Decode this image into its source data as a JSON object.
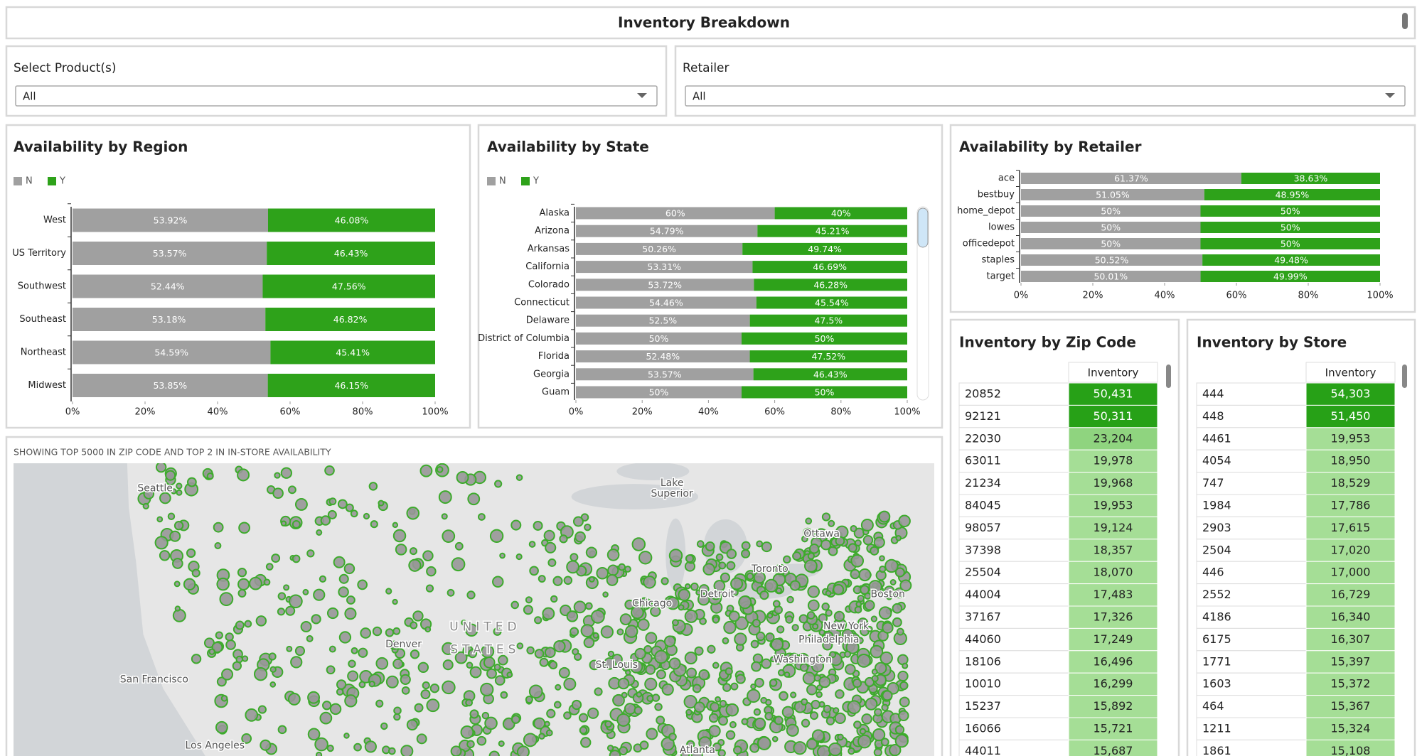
{
  "header": {
    "title": "Inventory Breakdown"
  },
  "filters": [
    {
      "label": "Select Product(s)",
      "value": "All"
    },
    {
      "label": "Retailer",
      "value": "All"
    }
  ],
  "chart_data": [
    {
      "type": "bar",
      "title": "Availability by Region",
      "legend": true,
      "categories": [
        "West",
        "US Territory",
        "Southwest",
        "Southeast",
        "Northeast",
        "Midwest"
      ],
      "series": [
        {
          "name": "N",
          "color": "#a0a0a0",
          "values": [
            53.92,
            53.57,
            52.44,
            53.18,
            54.59,
            53.85
          ],
          "value_labels": [
            "53.92%",
            "53.57%",
            "52.44%",
            "53.18%",
            "54.59%",
            "53.85%"
          ]
        },
        {
          "name": "Y",
          "color": "#2ea21a",
          "values": [
            46.08,
            46.43,
            47.56,
            46.82,
            45.41,
            46.15
          ],
          "value_labels": [
            "46.08%",
            "46.43%",
            "47.56%",
            "46.82%",
            "45.41%",
            "46.15%"
          ]
        }
      ],
      "xlim": [
        0,
        100
      ],
      "xticks": [
        {
          "value": 0,
          "label": "0%"
        },
        {
          "value": 20,
          "label": "20%"
        },
        {
          "value": 40,
          "label": "40%"
        },
        {
          "value": 60,
          "label": "60%"
        },
        {
          "value": 80,
          "label": "80%"
        },
        {
          "value": 100,
          "label": "100%"
        }
      ]
    },
    {
      "type": "bar",
      "title": "Availability by State",
      "legend": true,
      "categories": [
        "Alaska",
        "Arizona",
        "Arkansas",
        "California",
        "Colorado",
        "Connecticut",
        "Delaware",
        "District of Columbia",
        "Florida",
        "Georgia",
        "Guam"
      ],
      "series": [
        {
          "name": "N",
          "color": "#a0a0a0",
          "values": [
            60,
            54.79,
            50.26,
            53.31,
            53.72,
            54.46,
            52.5,
            50,
            52.48,
            53.57,
            50
          ],
          "value_labels": [
            "60%",
            "54.79%",
            "50.26%",
            "53.31%",
            "53.72%",
            "54.46%",
            "52.5%",
            "50%",
            "52.48%",
            "53.57%",
            "50%"
          ]
        },
        {
          "name": "Y",
          "color": "#2ea21a",
          "values": [
            40,
            45.21,
            49.74,
            46.69,
            46.28,
            45.54,
            47.5,
            50,
            47.52,
            46.43,
            50
          ],
          "value_labels": [
            "40%",
            "45.21%",
            "49.74%",
            "46.69%",
            "46.28%",
            "45.54%",
            "47.5%",
            "50%",
            "47.52%",
            "46.43%",
            "50%"
          ]
        }
      ],
      "xlim": [
        0,
        100
      ],
      "xticks": [
        {
          "value": 0,
          "label": "0%"
        },
        {
          "value": 20,
          "label": "20%"
        },
        {
          "value": 40,
          "label": "40%"
        },
        {
          "value": 60,
          "label": "60%"
        },
        {
          "value": 80,
          "label": "80%"
        },
        {
          "value": 100,
          "label": "100%"
        }
      ]
    },
    {
      "type": "bar",
      "title": "Availability by Retailer",
      "legend": false,
      "categories": [
        "ace",
        "bestbuy",
        "home_depot",
        "lowes",
        "officedepot",
        "staples",
        "target"
      ],
      "series": [
        {
          "color": "#a0a0a0",
          "values": [
            61.37,
            51.05,
            50,
            50,
            50,
            50.52,
            50.01
          ],
          "value_labels": [
            "61.37%",
            "51.05%",
            "50%",
            "50%",
            "50%",
            "50.52%",
            "50.01%"
          ]
        },
        {
          "color": "#2ea21a",
          "values": [
            38.63,
            48.95,
            50,
            50,
            50,
            49.48,
            49.99
          ],
          "value_labels": [
            "38.63%",
            "48.95%",
            "50%",
            "50%",
            "50%",
            "49.48%",
            "49.99%"
          ]
        }
      ],
      "xlim": [
        0,
        100
      ],
      "xticks": [
        {
          "value": 0,
          "label": "0%"
        },
        {
          "value": 20,
          "label": "20%"
        },
        {
          "value": 40,
          "label": "40%"
        },
        {
          "value": 60,
          "label": "60%"
        },
        {
          "value": 80,
          "label": "80%"
        },
        {
          "value": 100,
          "label": "100%"
        }
      ]
    }
  ],
  "map": {
    "caption": "SHOWING TOP 5000 IN ZIP CODE AND TOP 2 IN IN-STORE AVAILABILITY",
    "labels": [
      "Seattle",
      "San Francisco",
      "Los Angeles",
      "Denver",
      "UNITED",
      "STATES",
      "Chicago",
      "Detroit",
      "Toronto",
      "Ottawa",
      "Boston",
      "New York",
      "Philadelphia",
      "Washington",
      "St. Louis",
      "Atlanta",
      "Lake",
      "Superior"
    ]
  },
  "tables": [
    {
      "title": "Inventory by Zip Code",
      "header": "Inventory",
      "rows": [
        [
          "20852",
          "50,431"
        ],
        [
          "92121",
          "50,311"
        ],
        [
          "22030",
          "23,204"
        ],
        [
          "63011",
          "19,978"
        ],
        [
          "21234",
          "19,968"
        ],
        [
          "84045",
          "19,953"
        ],
        [
          "98057",
          "19,124"
        ],
        [
          "37398",
          "18,357"
        ],
        [
          "25504",
          "18,070"
        ],
        [
          "44004",
          "17,483"
        ],
        [
          "37167",
          "17,326"
        ],
        [
          "44060",
          "17,249"
        ],
        [
          "18106",
          "16,496"
        ],
        [
          "10010",
          "16,299"
        ],
        [
          "15237",
          "15,892"
        ],
        [
          "16066",
          "15,721"
        ],
        [
          "44011",
          "15,687"
        ]
      ]
    },
    {
      "title": "Inventory by Store",
      "header": "Inventory",
      "rows": [
        [
          "444",
          "54,303"
        ],
        [
          "448",
          "51,450"
        ],
        [
          "4461",
          "19,953"
        ],
        [
          "4054",
          "18,950"
        ],
        [
          "747",
          "18,529"
        ],
        [
          "1984",
          "17,786"
        ],
        [
          "2903",
          "17,615"
        ],
        [
          "2504",
          "17,020"
        ],
        [
          "446",
          "17,000"
        ],
        [
          "2552",
          "16,729"
        ],
        [
          "4186",
          "16,340"
        ],
        [
          "6175",
          "16,307"
        ],
        [
          "1771",
          "15,397"
        ],
        [
          "1603",
          "15,372"
        ],
        [
          "464",
          "15,367"
        ],
        [
          "1211",
          "15,324"
        ],
        [
          "1861",
          "15,108"
        ]
      ]
    }
  ]
}
